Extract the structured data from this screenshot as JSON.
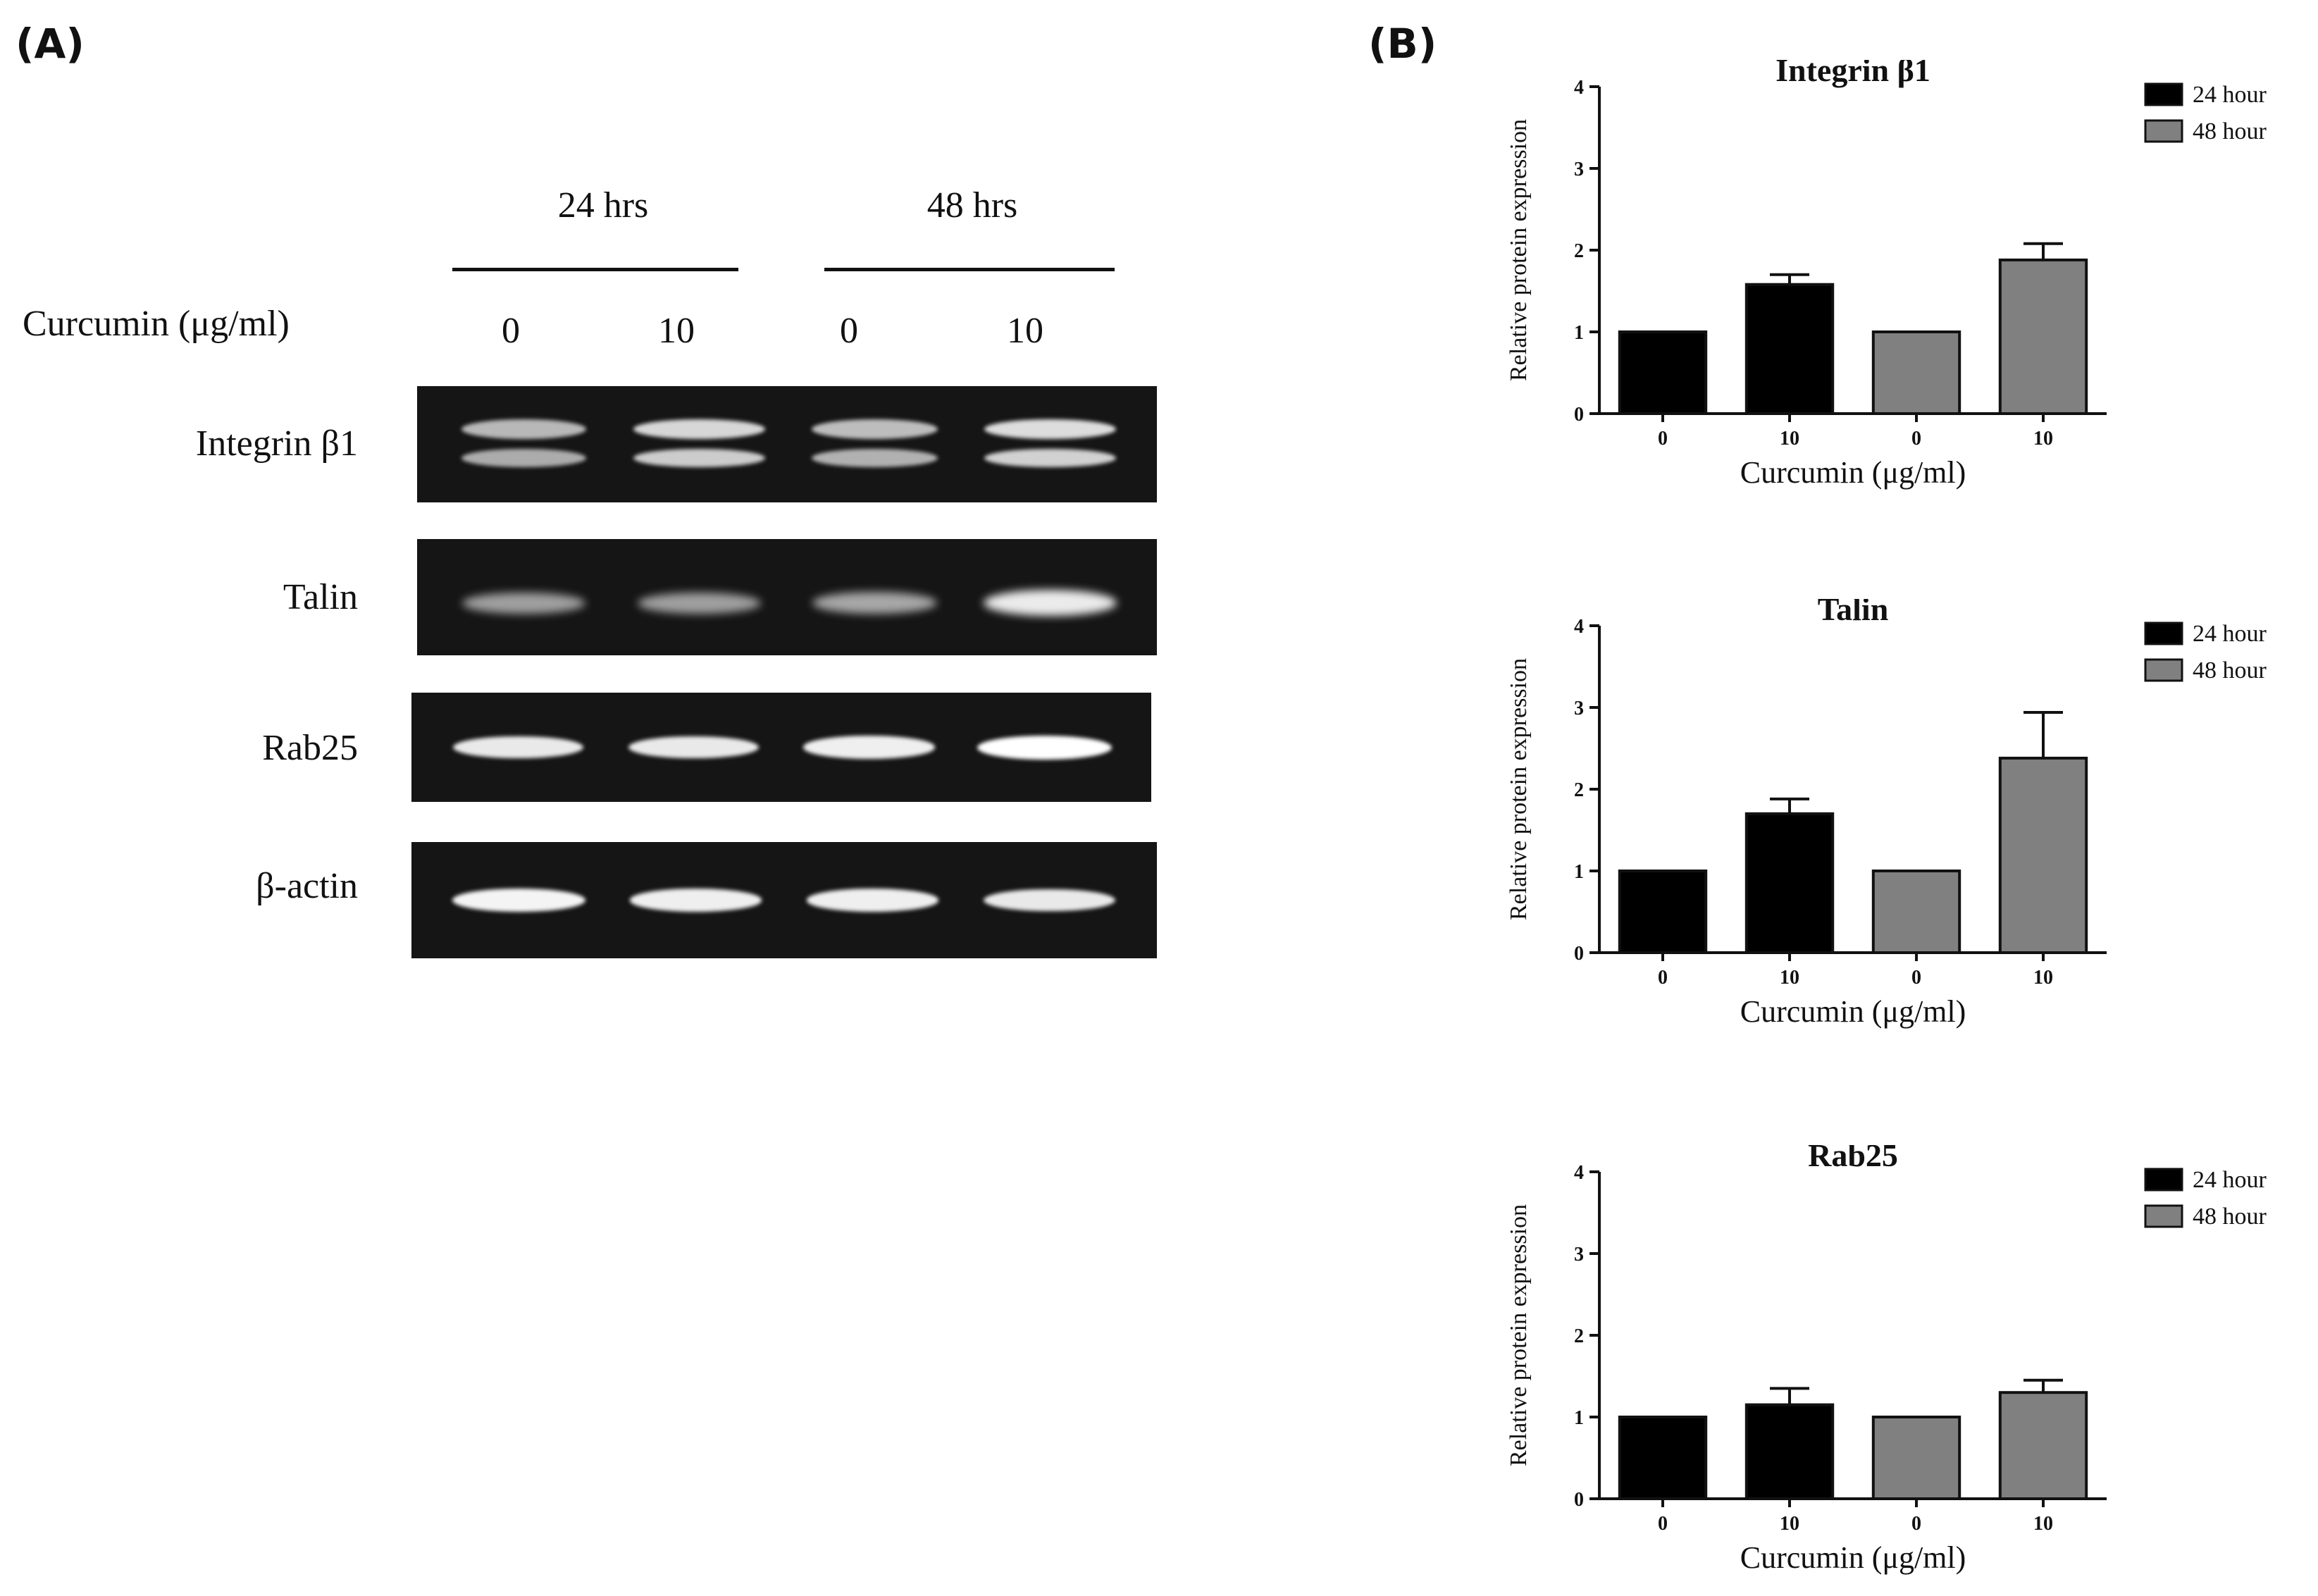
{
  "panel_a": {
    "label": "(A)",
    "time_labels": [
      "24 hrs",
      "48 hrs"
    ],
    "dose_axis_label": "Curcumin (μg/ml)",
    "doses": [
      "0",
      "10",
      "0",
      "10"
    ],
    "blot_rows": [
      {
        "label": "Integrin  β1",
        "intensities": [
          0.55,
          0.85,
          0.6,
          0.9
        ]
      },
      {
        "label": "Talin",
        "intensities": [
          0.45,
          0.45,
          0.5,
          0.95
        ]
      },
      {
        "label": "Rab25",
        "intensities": [
          0.8,
          0.8,
          0.85,
          1.0
        ]
      },
      {
        "label": "β-actin",
        "intensities": [
          0.9,
          0.85,
          0.85,
          0.8
        ]
      }
    ]
  },
  "panel_b": {
    "label": "(B)"
  },
  "chart_data": [
    {
      "type": "bar",
      "title": "Integrin β1",
      "xlabel": "Curcumin (μg/ml)",
      "ylabel": "Relative protein expression",
      "categories": [
        "0",
        "10",
        "0",
        "10"
      ],
      "values": [
        1.0,
        1.58,
        1.0,
        1.88
      ],
      "errors": [
        0,
        0.12,
        0,
        0.2
      ],
      "series_of_bar": [
        "24 hour",
        "24 hour",
        "48 hour",
        "48 hour"
      ],
      "legend": [
        {
          "name": "24 hour",
          "color": "#000000"
        },
        {
          "name": "48 hour",
          "color": "#808080"
        }
      ],
      "ylim": [
        0,
        4
      ],
      "yticks": [
        "0",
        "1",
        "2",
        "3",
        "4"
      ],
      "grid": false,
      "legend_position": "top-right"
    },
    {
      "type": "bar",
      "title": "Talin",
      "xlabel": "Curcumin (μg/ml)",
      "ylabel": "Relative protein expression",
      "categories": [
        "0",
        "10",
        "0",
        "10"
      ],
      "values": [
        1.0,
        1.7,
        1.0,
        2.38
      ],
      "errors": [
        0,
        0.18,
        0,
        0.56
      ],
      "series_of_bar": [
        "24 hour",
        "24 hour",
        "48 hour",
        "48 hour"
      ],
      "legend": [
        {
          "name": "24 hour",
          "color": "#000000"
        },
        {
          "name": "48 hour",
          "color": "#808080"
        }
      ],
      "ylim": [
        0,
        4
      ],
      "yticks": [
        "0",
        "1",
        "2",
        "3",
        "4"
      ],
      "grid": false,
      "legend_position": "top-right"
    },
    {
      "type": "bar",
      "title": "Rab25",
      "xlabel": "Curcumin (μg/ml)",
      "ylabel": "Relative protein expression",
      "categories": [
        "0",
        "10",
        "0",
        "10"
      ],
      "values": [
        1.0,
        1.15,
        1.0,
        1.3
      ],
      "errors": [
        0,
        0.2,
        0,
        0.15
      ],
      "series_of_bar": [
        "24 hour",
        "24 hour",
        "48 hour",
        "48 hour"
      ],
      "legend": [
        {
          "name": "24 hour",
          "color": "#000000"
        },
        {
          "name": "48 hour",
          "color": "#808080"
        }
      ],
      "ylim": [
        0,
        4
      ],
      "yticks": [
        "0",
        "1",
        "2",
        "3",
        "4"
      ],
      "grid": false,
      "legend_position": "top-right"
    }
  ]
}
